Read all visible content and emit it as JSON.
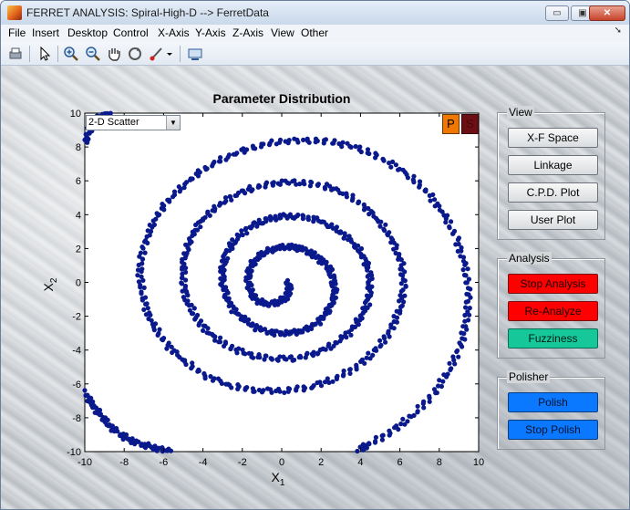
{
  "window": {
    "title": "FERRET ANALYSIS: Spiral-High-D --> FerretData",
    "buttons": {
      "minimize": "▭",
      "maximize": "▣",
      "close": "✕"
    }
  },
  "menu": [
    "File",
    "Insert",
    "Desktop",
    "Control",
    "X-Axis",
    "Y-Axis",
    "Z-Axis",
    "View",
    "Other"
  ],
  "toolbar_icons": [
    "print-icon",
    "pointer-icon",
    "zoom-in-icon",
    "zoom-out-icon",
    "pan-hand-icon",
    "rotate-icon",
    "brush-icon",
    "dropdown-arrow-icon",
    "link-icon"
  ],
  "plot": {
    "title": "Parameter Distribution",
    "dropdown_value": "2-D Scatter",
    "p_button": "P",
    "s_button": "S",
    "marker_color": "#0a1a8c"
  },
  "view_panel": {
    "title": "View",
    "buttons": [
      "X-F Space",
      "Linkage",
      "C.P.D. Plot",
      "User Plot"
    ]
  },
  "analysis_panel": {
    "title": "Analysis",
    "buttons": [
      "Stop Analysis",
      "Re-Analyze",
      "Fuzziness"
    ]
  },
  "polisher_panel": {
    "title": "Polisher",
    "buttons": [
      "Polish",
      "Stop Polish"
    ]
  },
  "chart_data": {
    "type": "scatter",
    "title": "Parameter Distribution",
    "xlabel": "X1",
    "ylabel": "X2",
    "xlim": [
      -10,
      10
    ],
    "ylim": [
      -10,
      10
    ],
    "xticks": [
      -10,
      -8,
      -6,
      -4,
      -2,
      0,
      2,
      4,
      6,
      8,
      10
    ],
    "yticks": [
      -10,
      -8,
      -6,
      -4,
      -2,
      0,
      2,
      4,
      6,
      8,
      10
    ],
    "grid": false,
    "series": [
      {
        "color": "#0a1a8c",
        "points": [
          [
            0.3,
            0.0
          ],
          [
            0.4,
            -0.4
          ],
          [
            0.2,
            -0.9
          ],
          [
            -0.2,
            -1.2
          ],
          [
            -0.7,
            -1.3
          ],
          [
            -1.2,
            -1.1
          ],
          [
            -1.5,
            -0.7
          ],
          [
            -1.7,
            -0.1
          ],
          [
            -1.7,
            0.5
          ],
          [
            -1.5,
            1.1
          ],
          [
            -1.1,
            1.6
          ],
          [
            -0.6,
            1.9
          ],
          [
            0.0,
            2.1
          ],
          [
            0.6,
            2.1
          ],
          [
            1.2,
            1.9
          ],
          [
            1.8,
            1.5
          ],
          [
            2.3,
            1.0
          ],
          [
            2.6,
            0.3
          ],
          [
            2.7,
            -0.4
          ],
          [
            2.6,
            -1.1
          ],
          [
            2.3,
            -1.8
          ],
          [
            1.8,
            -2.4
          ],
          [
            1.2,
            -2.8
          ],
          [
            0.5,
            -3.0
          ],
          [
            -0.3,
            -3.0
          ],
          [
            -1.1,
            -2.8
          ],
          [
            -1.8,
            -2.3
          ],
          [
            -2.4,
            -1.7
          ],
          [
            -2.8,
            -0.9
          ],
          [
            -3.0,
            0.0
          ],
          [
            -3.0,
            0.9
          ],
          [
            -2.8,
            1.8
          ],
          [
            -2.3,
            2.6
          ],
          [
            -1.6,
            3.3
          ],
          [
            -0.8,
            3.7
          ],
          [
            0.0,
            3.9
          ],
          [
            0.9,
            3.9
          ],
          [
            1.8,
            3.7
          ],
          [
            2.7,
            3.2
          ],
          [
            3.4,
            2.6
          ],
          [
            4.0,
            1.8
          ],
          [
            4.4,
            0.9
          ],
          [
            4.5,
            -0.1
          ],
          [
            4.4,
            -1.1
          ],
          [
            4.0,
            -2.1
          ],
          [
            3.4,
            -3.0
          ],
          [
            2.6,
            -3.7
          ],
          [
            1.7,
            -4.2
          ],
          [
            0.6,
            -4.5
          ],
          [
            -0.5,
            -4.5
          ],
          [
            -1.6,
            -4.3
          ],
          [
            -2.7,
            -3.8
          ],
          [
            -3.6,
            -3.1
          ],
          [
            -4.3,
            -2.2
          ],
          [
            -4.8,
            -1.1
          ],
          [
            -5.0,
            0.0
          ],
          [
            -5.0,
            1.2
          ],
          [
            -4.7,
            2.4
          ],
          [
            -4.2,
            3.5
          ],
          [
            -3.4,
            4.4
          ],
          [
            -2.5,
            5.1
          ],
          [
            -1.4,
            5.6
          ],
          [
            -0.2,
            5.9
          ],
          [
            1.0,
            5.9
          ],
          [
            2.2,
            5.7
          ],
          [
            3.3,
            5.2
          ],
          [
            4.3,
            4.4
          ],
          [
            5.1,
            3.4
          ],
          [
            5.7,
            2.3
          ],
          [
            6.1,
            1.0
          ],
          [
            6.2,
            -0.3
          ],
          [
            6.0,
            -1.6
          ],
          [
            5.5,
            -2.9
          ],
          [
            4.8,
            -4.0
          ],
          [
            3.8,
            -5.0
          ],
          [
            2.7,
            -5.7
          ],
          [
            1.4,
            -6.2
          ],
          [
            0.1,
            -6.4
          ],
          [
            -1.3,
            -6.4
          ],
          [
            -2.6,
            -6.1
          ],
          [
            -3.9,
            -5.5
          ],
          [
            -5.0,
            -4.6
          ],
          [
            -5.9,
            -3.6
          ],
          [
            -6.6,
            -2.4
          ],
          [
            -7.0,
            -1.1
          ],
          [
            -7.2,
            0.3
          ],
          [
            -7.1,
            1.7
          ],
          [
            -6.7,
            3.1
          ],
          [
            -6.1,
            4.4
          ],
          [
            -5.2,
            5.5
          ],
          [
            -4.2,
            6.5
          ],
          [
            -3.0,
            7.3
          ],
          [
            -1.7,
            7.9
          ],
          [
            -0.3,
            8.3
          ],
          [
            1.2,
            8.4
          ],
          [
            2.6,
            8.3
          ],
          [
            4.0,
            7.9
          ],
          [
            5.3,
            7.2
          ],
          [
            6.5,
            6.3
          ],
          [
            7.5,
            5.2
          ],
          [
            8.3,
            3.9
          ],
          [
            8.9,
            2.5
          ],
          [
            9.3,
            1.0
          ],
          [
            9.5,
            -0.6
          ],
          [
            9.4,
            -2.2
          ],
          [
            9.1,
            -3.7
          ],
          [
            8.5,
            -5.2
          ],
          [
            7.7,
            -6.6
          ],
          [
            6.7,
            -7.8
          ],
          [
            5.6,
            -8.8
          ],
          [
            4.4,
            -9.6
          ],
          [
            3.9,
            -9.9
          ]
        ]
      },
      {
        "color": "#0a1a8c",
        "points": [
          [
            -10.0,
            -6.5
          ],
          [
            -9.7,
            -7.1
          ],
          [
            -9.3,
            -7.7
          ],
          [
            -8.9,
            -8.3
          ],
          [
            -8.4,
            -8.8
          ],
          [
            -7.9,
            -9.2
          ],
          [
            -7.3,
            -9.5
          ],
          [
            -6.7,
            -9.7
          ],
          [
            -6.1,
            -9.9
          ],
          [
            -5.7,
            -10.0
          ]
        ]
      },
      {
        "color": "#0a1a8c",
        "points": [
          [
            -10.0,
            8.3
          ],
          [
            -9.8,
            8.9
          ],
          [
            -9.6,
            9.4
          ],
          [
            -9.3,
            9.7
          ],
          [
            -9.0,
            9.9
          ],
          [
            -8.6,
            10.0
          ]
        ]
      }
    ]
  }
}
